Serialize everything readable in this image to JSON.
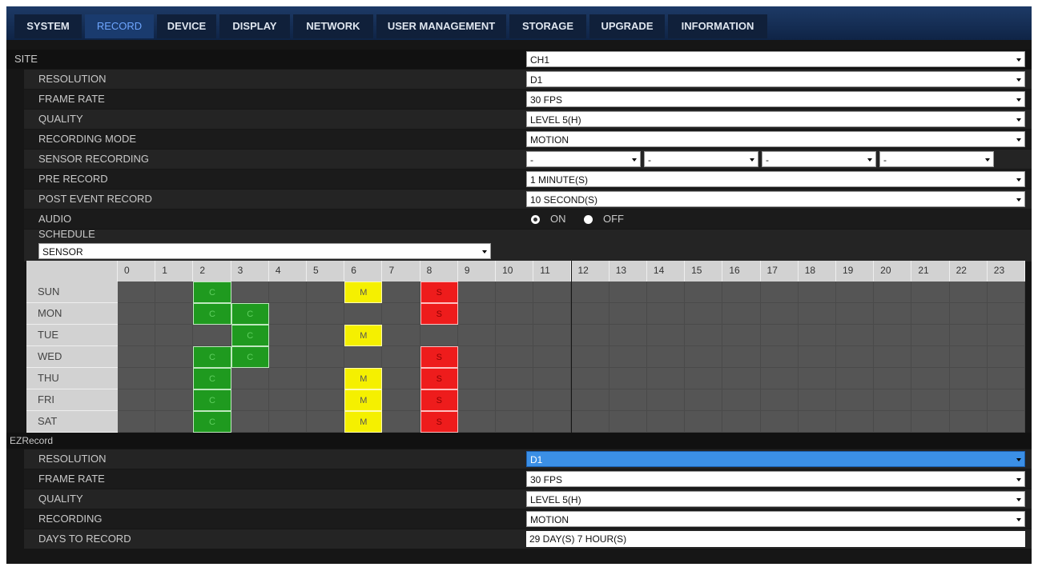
{
  "tabs": [
    "SYSTEM",
    "RECORD",
    "DEVICE",
    "DISPLAY",
    "NETWORK",
    "USER MANAGEMENT",
    "STORAGE",
    "UPGRADE",
    "INFORMATION"
  ],
  "site": {
    "label": "SITE",
    "value": "CH1"
  },
  "settings": [
    {
      "label": "RESOLUTION",
      "value": "D1"
    },
    {
      "label": "FRAME RATE",
      "value": "30 FPS"
    },
    {
      "label": "QUALITY",
      "value": "LEVEL 5(H)"
    },
    {
      "label": "RECORDING MODE",
      "value": "MOTION"
    },
    {
      "label": "SENSOR RECORDING",
      "values": [
        "-",
        "-",
        "-",
        "-"
      ]
    },
    {
      "label": "PRE RECORD",
      "value": "1 MINUTE(S)"
    },
    {
      "label": "POST EVENT RECORD",
      "value": "10 SECOND(S)"
    },
    {
      "label": "AUDIO",
      "options": [
        "ON",
        "OFF"
      ]
    }
  ],
  "schedule": {
    "label": "SCHEDULE",
    "value": "SENSOR",
    "hours": [
      0,
      1,
      2,
      3,
      4,
      5,
      6,
      7,
      8,
      9,
      10,
      11,
      12,
      13,
      14,
      15,
      16,
      17,
      18,
      19,
      20,
      21,
      22,
      23
    ],
    "rows": [
      {
        "day": "SUN",
        "cells": [
          null,
          null,
          "C",
          null,
          null,
          null,
          "M",
          null,
          "S",
          null,
          null,
          null,
          null,
          null,
          null,
          null,
          null,
          null,
          null,
          null,
          null,
          null,
          null,
          null
        ]
      },
      {
        "day": "MON",
        "cells": [
          null,
          null,
          "C",
          "C",
          null,
          null,
          null,
          null,
          "S",
          null,
          null,
          null,
          null,
          null,
          null,
          null,
          null,
          null,
          null,
          null,
          null,
          null,
          null,
          null
        ]
      },
      {
        "day": "TUE",
        "cells": [
          null,
          null,
          null,
          "C",
          null,
          null,
          "M",
          null,
          null,
          null,
          null,
          null,
          null,
          null,
          null,
          null,
          null,
          null,
          null,
          null,
          null,
          null,
          null,
          null
        ]
      },
      {
        "day": "WED",
        "cells": [
          null,
          null,
          "C",
          "C",
          null,
          null,
          null,
          null,
          "S",
          null,
          null,
          null,
          null,
          null,
          null,
          null,
          null,
          null,
          null,
          null,
          null,
          null,
          null,
          null
        ]
      },
      {
        "day": "THU",
        "cells": [
          null,
          null,
          "C",
          null,
          null,
          null,
          "M",
          null,
          "S",
          null,
          null,
          null,
          null,
          null,
          null,
          null,
          null,
          null,
          null,
          null,
          null,
          null,
          null,
          null
        ]
      },
      {
        "day": "FRI",
        "cells": [
          null,
          null,
          "C",
          null,
          null,
          null,
          "M",
          null,
          "S",
          null,
          null,
          null,
          null,
          null,
          null,
          null,
          null,
          null,
          null,
          null,
          null,
          null,
          null,
          null
        ]
      },
      {
        "day": "SAT",
        "cells": [
          null,
          null,
          "C",
          null,
          null,
          null,
          "M",
          null,
          "S",
          null,
          null,
          null,
          null,
          null,
          null,
          null,
          null,
          null,
          null,
          null,
          null,
          null,
          null,
          null
        ]
      }
    ]
  },
  "ezrecord": {
    "label": "EZRecord",
    "settings": [
      {
        "label": "RESOLUTION",
        "value": "D1"
      },
      {
        "label": "FRAME RATE",
        "value": "30 FPS"
      },
      {
        "label": "QUALITY",
        "value": "LEVEL 5(H)"
      },
      {
        "label": "RECORDING",
        "value": "MOTION"
      },
      {
        "label": "DAYS TO RECORD",
        "text": "29 DAY(S) 7 HOUR(S)"
      }
    ]
  }
}
